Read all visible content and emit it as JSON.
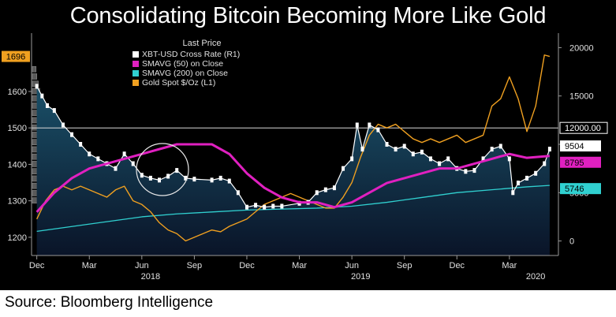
{
  "title": "Consolidating Bitcoin Becoming More Like Gold",
  "source": "Source: Bloomberg Intelligence",
  "colors": {
    "background": "#000000",
    "btc": "#ffffff",
    "sma50": "#e020c0",
    "sma200": "#30d0d0",
    "gold": "#f0a020",
    "area_top": "#1a5068",
    "area_bottom": "#0a1428"
  },
  "chart_data": {
    "type": "line",
    "legend": {
      "title": "Last Price",
      "items": [
        {
          "label": "XBT-USD Cross Rate  (R1)",
          "color": "#ffffff"
        },
        {
          "label": "SMAVG (50)  on Close",
          "color": "#e020c0"
        },
        {
          "label": "SMAVG (200)  on Close",
          "color": "#30d0d0"
        },
        {
          "label": "Gold Spot $/Oz  (L1)",
          "color": "#f0a020"
        }
      ],
      "placement": "top-center"
    },
    "x_ticks": [
      {
        "label": "Dec",
        "t": 0
      },
      {
        "label": "Mar",
        "t": 3
      },
      {
        "label": "Jun",
        "t": 6
      },
      {
        "label": "Sep",
        "t": 9
      },
      {
        "label": "Dec",
        "t": 12
      },
      {
        "label": "Mar",
        "t": 15
      },
      {
        "label": "Jun",
        "t": 18
      },
      {
        "label": "Sep",
        "t": 21
      },
      {
        "label": "Dec",
        "t": 24
      },
      {
        "label": "Mar",
        "t": 27
      }
    ],
    "year_labels": [
      {
        "label": "2018",
        "t": 6.5
      },
      {
        "label": "2019",
        "t": 18.5
      },
      {
        "label": "2020",
        "t": 28.5
      }
    ],
    "x_range": [
      -0.3,
      29.8
    ],
    "left_axis": {
      "ticks": [
        1200,
        1300,
        1400,
        1500,
        1600
      ],
      "range": [
        1150,
        1760
      ]
    },
    "right_axis": {
      "ticks": [
        0,
        5000,
        10000,
        15000,
        20000
      ],
      "range": [
        -1500,
        21500
      ]
    },
    "left_current_label": "1696",
    "right_labels": [
      "12000.00",
      "9504",
      "8795",
      "5746"
    ],
    "reference_line": 1500,
    "btc": {
      "t": [
        0,
        0.3,
        0.6,
        1,
        1.5,
        2,
        2.5,
        3,
        3.5,
        4,
        4.5,
        5,
        5.5,
        6,
        6.5,
        7,
        7.5,
        8,
        8.5,
        9,
        10,
        10.5,
        11,
        11.5,
        12,
        12.5,
        13,
        13.5,
        14,
        15,
        15.5,
        16,
        16.5,
        17,
        17.5,
        18,
        18.3,
        18.6,
        19,
        19.5,
        20,
        20.5,
        21,
        21.5,
        22,
        22.5,
        23,
        23.5,
        24,
        24.5,
        25,
        25.5,
        26,
        26.5,
        27,
        27.2,
        27.5,
        28,
        28.5,
        29,
        29.3
      ],
      "values": [
        16000,
        15000,
        14000,
        13500,
        12000,
        11000,
        10000,
        9000,
        8500,
        8000,
        7500,
        9000,
        8000,
        6800,
        6500,
        6300,
        6700,
        7300,
        6500,
        6400,
        6300,
        6500,
        6200,
        5000,
        3500,
        3700,
        3500,
        3600,
        3600,
        3900,
        4000,
        5000,
        5300,
        5500,
        7500,
        8500,
        12000,
        9500,
        12000,
        11500,
        10000,
        9500,
        9800,
        9000,
        9200,
        8500,
        8000,
        8500,
        7500,
        7200,
        7300,
        8500,
        9500,
        9800,
        8500,
        5000,
        6000,
        6500,
        7000,
        8000,
        9504
      ]
    },
    "sma50": {
      "t": [
        0,
        1,
        2,
        3,
        4,
        5,
        6,
        7,
        8,
        9,
        10,
        11,
        12,
        13,
        14,
        15,
        16,
        17,
        18,
        19,
        20,
        21,
        22,
        23,
        24,
        25,
        26,
        27,
        28,
        29.3
      ],
      "values": [
        3000,
        5000,
        6500,
        7500,
        8000,
        8500,
        9000,
        9500,
        10000,
        10000,
        10000,
        9000,
        7000,
        5500,
        4500,
        4000,
        4000,
        3500,
        4000,
        5000,
        6000,
        6500,
        7000,
        7500,
        7500,
        8000,
        8500,
        9000,
        8600,
        8795
      ]
    },
    "sma200": {
      "t": [
        0,
        2,
        4,
        6,
        8,
        10,
        12,
        14,
        16,
        18,
        20,
        22,
        24,
        26,
        28,
        29.3
      ],
      "values": [
        1000,
        1500,
        2000,
        2500,
        2800,
        3000,
        3200,
        3300,
        3400,
        3600,
        4000,
        4500,
        5000,
        5300,
        5600,
        5746
      ]
    },
    "gold": {
      "t": [
        0,
        0.5,
        1,
        1.5,
        2,
        2.5,
        3,
        3.5,
        4,
        4.5,
        5,
        5.5,
        6,
        6.5,
        7,
        7.5,
        8,
        8.5,
        9,
        9.5,
        10,
        10.5,
        11,
        11.5,
        12,
        12.5,
        13,
        13.5,
        14,
        14.5,
        15,
        15.5,
        16,
        16.5,
        17,
        17.5,
        18,
        18.5,
        19,
        19.5,
        20,
        20.5,
        21,
        21.5,
        22,
        22.5,
        23,
        23.5,
        24,
        24.5,
        25,
        25.5,
        26,
        26.5,
        27,
        27.5,
        28,
        28.5,
        29,
        29.3
      ],
      "values": [
        1250,
        1300,
        1330,
        1340,
        1330,
        1340,
        1330,
        1320,
        1310,
        1330,
        1340,
        1300,
        1290,
        1270,
        1240,
        1220,
        1210,
        1190,
        1200,
        1210,
        1220,
        1215,
        1230,
        1240,
        1250,
        1270,
        1290,
        1300,
        1310,
        1320,
        1310,
        1300,
        1290,
        1280,
        1280,
        1310,
        1350,
        1420,
        1480,
        1510,
        1500,
        1510,
        1490,
        1470,
        1460,
        1470,
        1460,
        1470,
        1480,
        1460,
        1470,
        1480,
        1560,
        1580,
        1640,
        1580,
        1490,
        1560,
        1700,
        1696
      ]
    },
    "volume_profile": {
      "levels": [
        1300,
        1320,
        1340,
        1360,
        1380,
        1400,
        1420,
        1440,
        1460,
        1480,
        1500,
        1520,
        1540,
        1560,
        1580,
        1600,
        1620,
        1640,
        1660
      ],
      "values": [
        100,
        90,
        75,
        80,
        82,
        70,
        60,
        50,
        35,
        28,
        22,
        20,
        18,
        15,
        12,
        10,
        8,
        6,
        5
      ]
    }
  }
}
